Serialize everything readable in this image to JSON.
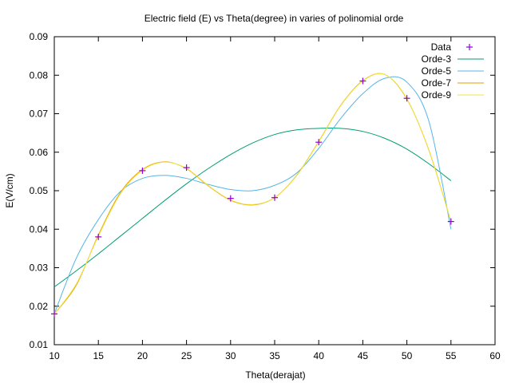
{
  "chart_data": {
    "type": "line",
    "title": "Electric field (E) vs Theta(degree) in varies of polinomial orde",
    "xlabel": "Theta(derajat)",
    "ylabel": "E(V/cm)",
    "xlim": [
      10,
      60
    ],
    "ylim": [
      0.01,
      0.09
    ],
    "xticks": [
      10,
      15,
      20,
      25,
      30,
      35,
      40,
      45,
      50,
      55,
      60
    ],
    "yticks": [
      0.01,
      0.02,
      0.03,
      0.04,
      0.05,
      0.06,
      0.07,
      0.08,
      0.09
    ],
    "grid": false,
    "legend_position": "top-right",
    "data_points": {
      "name": "Data",
      "marker": "+",
      "color": "#9400d3",
      "x": [
        10,
        15,
        20,
        25,
        30,
        35,
        40,
        45,
        50,
        55
      ],
      "y": [
        0.018,
        0.038,
        0.0552,
        0.056,
        0.048,
        0.0482,
        0.0626,
        0.0785,
        0.074,
        0.042
      ]
    },
    "series": [
      {
        "name": "Orde-3",
        "color": "#009e73",
        "x": [
          10,
          12.5,
          15,
          17.5,
          20,
          22.5,
          25,
          27.5,
          30,
          32.5,
          35,
          37.5,
          40,
          42.5,
          45,
          47.5,
          50,
          52.5,
          55
        ],
        "y": [
          0.025,
          0.0292,
          0.0336,
          0.0382,
          0.0428,
          0.0474,
          0.0518,
          0.0558,
          0.0594,
          0.0624,
          0.0646,
          0.0658,
          0.0662,
          0.0662,
          0.0654,
          0.0636,
          0.0608,
          0.057,
          0.0526
        ]
      },
      {
        "name": "Orde-5",
        "color": "#56b4e9",
        "x": [
          10,
          12.5,
          15,
          17.5,
          20,
          22.5,
          25,
          27.5,
          30,
          32.5,
          35,
          37.5,
          40,
          42.5,
          45,
          47.5,
          50,
          52.5,
          55
        ],
        "y": [
          0.018,
          0.0325,
          0.0425,
          0.0498,
          0.0532,
          0.054,
          0.0532,
          0.0516,
          0.0503,
          0.05,
          0.0514,
          0.0546,
          0.061,
          0.0688,
          0.0752,
          0.0792,
          0.0782,
          0.068,
          0.04
        ]
      },
      {
        "name": "Orde-7",
        "color": "#e69f00",
        "x": [
          10,
          12.5,
          15,
          17.5,
          20,
          22.5,
          25,
          27.5,
          30,
          32.5,
          35,
          37.5,
          40,
          42.5,
          45,
          47.5,
          50,
          52.5,
          55
        ],
        "y": [
          0.018,
          0.0255,
          0.0385,
          0.0495,
          0.0555,
          0.0575,
          0.0557,
          0.0512,
          0.0475,
          0.0463,
          0.0482,
          0.054,
          0.0628,
          0.0722,
          0.0786,
          0.0802,
          0.0738,
          0.0605,
          0.042
        ]
      },
      {
        "name": "Orde-9",
        "color": "#f0e442",
        "x": [
          10,
          12.5,
          15,
          17.5,
          20,
          22.5,
          25,
          27.5,
          30,
          32.5,
          35,
          37.5,
          40,
          42.5,
          45,
          47.5,
          50,
          52.5,
          55
        ],
        "y": [
          0.018,
          0.0258,
          0.0382,
          0.0492,
          0.0553,
          0.0574,
          0.0558,
          0.0513,
          0.0476,
          0.0464,
          0.0482,
          0.0539,
          0.0627,
          0.0721,
          0.0785,
          0.0802,
          0.0739,
          0.0604,
          0.042
        ]
      }
    ]
  }
}
